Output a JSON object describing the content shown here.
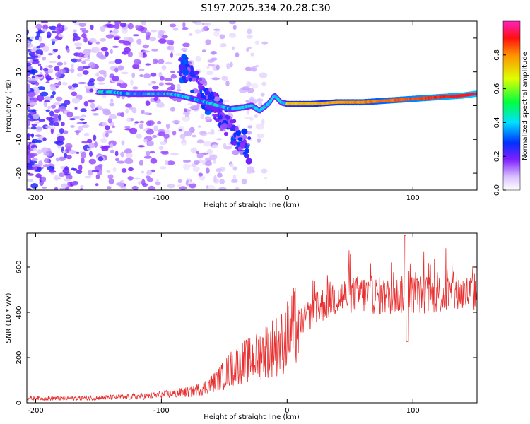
{
  "title": "S197.2025.334.20.28.C30",
  "chart_data": [
    {
      "type": "heatmap",
      "xlabel": "Height of straight line (km)",
      "ylabel": "Frequency (Hz)",
      "xlim": [
        -207,
        151
      ],
      "ylim": [
        -25,
        25
      ],
      "xticks": [
        -200,
        -100,
        0,
        100
      ],
      "yticks": [
        -20,
        -10,
        0,
        10,
        20
      ],
      "colorbar": {
        "label": "Normalized spectral amplitude",
        "range": [
          0,
          1
        ],
        "ticks": [
          "0.0",
          "0.2",
          "0.4",
          "0.6",
          "0.8"
        ]
      },
      "ridge": {
        "x": [
          -150,
          -140,
          -125,
          -110,
          -95,
          -85,
          -75,
          -65,
          -55,
          -45,
          -35,
          -28,
          -22,
          -15,
          -10,
          -5,
          0,
          10,
          20,
          40,
          60,
          80,
          100,
          120,
          140,
          150
        ],
        "y": [
          4,
          4,
          3.5,
          3.5,
          3.5,
          3,
          2,
          1,
          0,
          -1,
          -0.5,
          0,
          -1.5,
          0.5,
          3,
          1,
          0.5,
          0.5,
          0.5,
          1,
          1,
          1.5,
          2,
          2.5,
          3,
          3.5
        ]
      }
    },
    {
      "type": "line",
      "xlabel": "Height of straight line (km)",
      "ylabel": "SNR (10 * v/v)",
      "xlim": [
        -207,
        151
      ],
      "ylim": [
        0,
        750
      ],
      "xticks": [
        -200,
        -100,
        0,
        100
      ],
      "yticks": [
        0,
        200,
        400,
        600
      ],
      "color": "#e83030",
      "x": [
        -207,
        -180,
        -150,
        -130,
        -110,
        -90,
        -75,
        -65,
        -55,
        -45,
        -35,
        -25,
        -15,
        -5,
        5,
        15,
        25,
        35,
        45,
        60,
        80,
        95,
        100,
        120,
        140,
        151
      ],
      "y": [
        20,
        20,
        22,
        25,
        30,
        40,
        50,
        70,
        100,
        150,
        180,
        200,
        240,
        260,
        330,
        380,
        420,
        460,
        470,
        480,
        470,
        480,
        480,
        480,
        480,
        490
      ]
    }
  ]
}
